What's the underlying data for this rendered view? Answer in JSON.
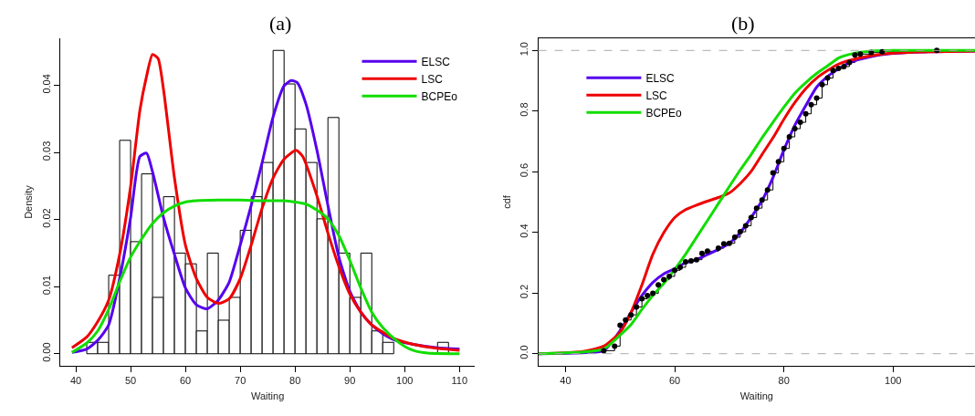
{
  "chart_data": [
    {
      "type": "histogram",
      "title": "(a)",
      "xlabel": "Waiting",
      "ylabel": "Density",
      "color": "#ffffff",
      "bins": [
        42,
        44,
        46,
        48,
        50,
        52,
        54,
        56,
        58,
        60,
        62,
        64,
        66,
        68,
        70,
        72,
        74,
        76,
        78,
        80,
        82,
        84,
        86,
        88,
        90,
        92,
        94,
        96,
        98,
        100,
        102,
        104,
        106,
        108
      ],
      "values": [
        0.0017,
        0.0017,
        0.0117,
        0.0318,
        0.0167,
        0.0268,
        0.0084,
        0.0234,
        0.015,
        0.0134,
        0.0034,
        0.015,
        0.005,
        0.0084,
        0.0184,
        0.0234,
        0.0285,
        0.0452,
        0.0402,
        0.0335,
        0.0285,
        0.0201,
        0.0352,
        0.015,
        0.0084,
        0.015,
        0.0034,
        0.0017,
        0,
        0,
        0,
        0,
        0.0017
      ],
      "series": [
        {
          "name": "ELSC",
          "type": "line",
          "color": "#5500ee",
          "x": [
            39.3,
            42,
            44,
            46,
            48,
            50,
            51.7,
            52.9,
            54,
            56,
            58,
            60,
            62,
            64,
            66,
            68,
            70,
            72,
            74,
            76,
            78,
            79.3,
            80.4,
            82,
            84,
            86,
            88,
            90,
            92,
            94,
            96,
            98,
            101.6,
            106,
            110
          ],
          "values": [
            0.0002,
            0.0007,
            0.002,
            0.0043,
            0.0112,
            0.0203,
            0.0294,
            0.0299,
            0.0271,
            0.0203,
            0.0148,
            0.0098,
            0.0073,
            0.0067,
            0.008,
            0.0107,
            0.0162,
            0.0221,
            0.0285,
            0.0353,
            0.0399,
            0.0407,
            0.0404,
            0.0372,
            0.0303,
            0.0221,
            0.0144,
            0.0093,
            0.0062,
            0.0043,
            0.003,
            0.0021,
            0.0014,
            0.0009,
            0.0007
          ]
        },
        {
          "name": "LSC",
          "type": "line",
          "color": "#ee0000",
          "x": [
            39.3,
            42,
            44,
            46,
            48,
            50,
            51.7,
            52.9,
            54,
            55,
            56,
            58,
            60,
            62,
            64,
            66,
            68,
            70,
            72,
            74,
            76,
            78,
            80.2,
            81.4,
            84,
            86,
            88,
            90,
            92,
            94,
            96,
            98,
            101.6,
            106,
            110
          ],
          "values": [
            0.0009,
            0.0025,
            0.0048,
            0.008,
            0.0148,
            0.0249,
            0.0363,
            0.0413,
            0.0446,
            0.044,
            0.0394,
            0.0262,
            0.0162,
            0.0112,
            0.0084,
            0.0075,
            0.0082,
            0.0112,
            0.0162,
            0.0217,
            0.0262,
            0.029,
            0.0303,
            0.0294,
            0.0235,
            0.018,
            0.013,
            0.0089,
            0.0062,
            0.0043,
            0.0032,
            0.0023,
            0.0014,
            0.0008,
            0.0005
          ]
        },
        {
          "name": "BCPEo",
          "type": "line",
          "color": "#11dd00",
          "x": [
            39.3,
            42,
            44,
            46,
            48,
            50,
            52,
            54,
            56,
            58,
            60,
            62,
            66,
            70,
            74,
            78,
            82,
            84,
            86,
            88,
            90,
            92,
            94,
            96,
            98,
            100,
            101.6,
            104.2,
            110
          ],
          "values": [
            0.0002,
            0.0016,
            0.0034,
            0.0066,
            0.0107,
            0.0144,
            0.0171,
            0.0194,
            0.021,
            0.022,
            0.0226,
            0.0228,
            0.0229,
            0.0229,
            0.0228,
            0.0228,
            0.0223,
            0.0214,
            0.0201,
            0.0176,
            0.0139,
            0.0098,
            0.0062,
            0.0039,
            0.0023,
            0.0011,
            0.0005,
            0.0001,
            0.0
          ]
        }
      ],
      "xlim": [
        37.2,
        112.8
      ],
      "xticks": [
        40,
        50,
        60,
        70,
        80,
        90,
        100,
        110
      ],
      "ylim": [
        -0.0018,
        0.047
      ],
      "yticks": [
        {
          "value": 0,
          "label": "0.00"
        },
        {
          "value": 0.01,
          "label": "0.01"
        },
        {
          "value": 0.02,
          "label": "0.02"
        },
        {
          "value": 0.03,
          "label": "0.03"
        },
        {
          "value": 0.04,
          "label": "0.04"
        }
      ],
      "legend": "top right"
    },
    {
      "type": "line",
      "title": "(b)",
      "xlabel": "Waiting",
      "ylabel": "cdf",
      "series": [
        {
          "type": "step",
          "color": "#000000",
          "marker": "circle",
          "x": [
            47,
            49,
            50,
            51,
            52,
            53,
            54,
            55,
            56,
            57,
            58,
            59,
            60,
            61,
            62,
            63,
            64,
            65,
            66,
            68,
            69,
            70,
            71,
            72,
            73,
            74,
            75,
            76,
            77,
            78,
            79,
            80,
            81,
            82,
            83,
            84,
            85,
            86,
            87,
            88,
            89,
            90,
            91,
            92,
            93,
            94,
            96,
            98,
            108
          ],
          "values": [
            0.01,
            0.025,
            0.094,
            0.111,
            0.128,
            0.154,
            0.181,
            0.192,
            0.199,
            0.227,
            0.244,
            0.255,
            0.275,
            0.285,
            0.303,
            0.306,
            0.31,
            0.331,
            0.338,
            0.348,
            0.362,
            0.364,
            0.384,
            0.402,
            0.422,
            0.449,
            0.48,
            0.507,
            0.54,
            0.596,
            0.633,
            0.677,
            0.715,
            0.742,
            0.763,
            0.791,
            0.821,
            0.843,
            0.887,
            0.909,
            0.934,
            0.941,
            0.947,
            0.96,
            0.985,
            0.988,
            0.993,
            0.996,
            1.0
          ]
        },
        {
          "name": "ELSC",
          "type": "line",
          "color": "#5500ee",
          "x": [
            35,
            43,
            47,
            50,
            52,
            54,
            56,
            58,
            60,
            62,
            64,
            66,
            68,
            70,
            72,
            74,
            76,
            78,
            80,
            82,
            84,
            86,
            88,
            90,
            92,
            96,
            100,
            105,
            115
          ],
          "values": [
            0,
            0.003,
            0.01,
            0.076,
            0.136,
            0.192,
            0.235,
            0.263,
            0.28,
            0.3,
            0.31,
            0.327,
            0.344,
            0.364,
            0.399,
            0.449,
            0.505,
            0.581,
            0.672,
            0.753,
            0.818,
            0.879,
            0.914,
            0.939,
            0.96,
            0.98,
            0.99,
            0.995,
            0.998
          ]
        },
        {
          "name": "LSC",
          "type": "line",
          "color": "#ee0000",
          "x": [
            35,
            43,
            47,
            50,
            52,
            54,
            56,
            58,
            60,
            62,
            64,
            66,
            68,
            70,
            72,
            74,
            76,
            78,
            80,
            82,
            84,
            86,
            88,
            90,
            92,
            96,
            100,
            105,
            115
          ],
          "values": [
            0,
            0.007,
            0.025,
            0.071,
            0.136,
            0.227,
            0.328,
            0.399,
            0.449,
            0.475,
            0.49,
            0.503,
            0.515,
            0.53,
            0.561,
            0.601,
            0.657,
            0.712,
            0.773,
            0.828,
            0.874,
            0.909,
            0.934,
            0.955,
            0.967,
            0.983,
            0.991,
            0.995,
            0.998
          ]
        },
        {
          "name": "BCPEo",
          "type": "line",
          "color": "#11dd00",
          "x": [
            35,
            43,
            47,
            50,
            52,
            54,
            56,
            58,
            60,
            62,
            64,
            66,
            68,
            70,
            72,
            74,
            76,
            78,
            80,
            82,
            84,
            86,
            88,
            90,
            92,
            96,
            100,
            105,
            115
          ],
          "values": [
            0,
            0.005,
            0.015,
            0.061,
            0.096,
            0.146,
            0.192,
            0.232,
            0.278,
            0.328,
            0.384,
            0.439,
            0.495,
            0.551,
            0.606,
            0.657,
            0.712,
            0.763,
            0.813,
            0.859,
            0.894,
            0.924,
            0.949,
            0.975,
            0.987,
            0.998,
            1.0,
            1.0,
            1.0
          ]
        }
      ],
      "ref_lines": [
        {
          "axis": "y",
          "value": 0,
          "color": "#aaaaaa",
          "line_style": "dashed"
        },
        {
          "axis": "y",
          "value": 1,
          "color": "#aaaaaa",
          "line_style": "dashed"
        }
      ],
      "xlim": [
        35,
        115
      ],
      "xticks": [
        40,
        60,
        80,
        100
      ],
      "ylim": [
        -0.04,
        1.04
      ],
      "yticks": [
        {
          "value": 0,
          "label": "0.0"
        },
        {
          "value": 0.2,
          "label": "0.2"
        },
        {
          "value": 0.4,
          "label": "0.4"
        },
        {
          "value": 0.6,
          "label": "0.6"
        },
        {
          "value": 0.8,
          "label": "0.8"
        },
        {
          "value": 1,
          "label": "1.0"
        }
      ],
      "legend": "top left"
    }
  ]
}
